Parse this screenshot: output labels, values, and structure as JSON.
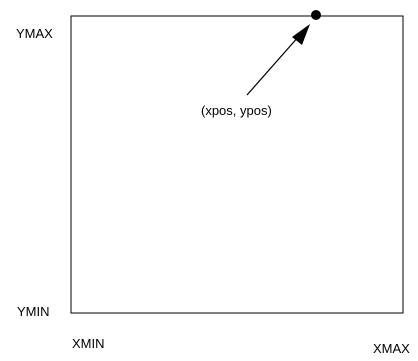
{
  "labels": {
    "ymax": "YMAX",
    "ymin": "YMIN",
    "xmin": "XMIN",
    "xmax": "XMAX",
    "point": "(xpos, ypos)"
  },
  "colors": {
    "stroke": "#000000",
    "background": "#ffffff"
  }
}
